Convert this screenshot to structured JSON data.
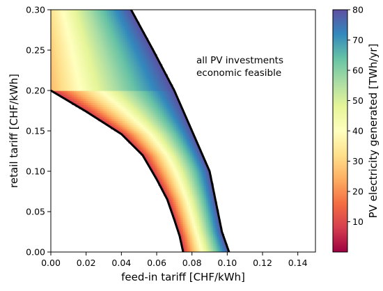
{
  "chart_data": {
    "type": "heatmap",
    "xlabel": "feed-in tariff  [CHF/kWh]",
    "ylabel": "retail tariff [CHF/kWh]",
    "xlim": [
      0.0,
      0.15
    ],
    "ylim": [
      0.0,
      0.3
    ],
    "x_ticks": [
      "0.00",
      "0.02",
      "0.04",
      "0.06",
      "0.08",
      "0.10",
      "0.12",
      "0.14"
    ],
    "x_tick_values": [
      0.0,
      0.02,
      0.04,
      0.06,
      0.08,
      0.1,
      0.12,
      0.14
    ],
    "y_ticks": [
      "0.00",
      "0.05",
      "0.10",
      "0.15",
      "0.20",
      "0.25",
      "0.30"
    ],
    "y_tick_values": [
      0.0,
      0.05,
      0.1,
      0.15,
      0.2,
      0.25,
      0.3
    ],
    "annotation": [
      "all PV investments",
      "economic feasible"
    ],
    "colorbar": {
      "label": "PV electricity generated [TWh/yr]",
      "range": [
        0,
        80
      ],
      "ticks": [
        "10",
        "20",
        "30",
        "40",
        "50",
        "60",
        "70",
        "80"
      ],
      "tick_values": [
        10,
        20,
        30,
        40,
        50,
        60,
        70,
        80
      ],
      "colormap": "Spectral",
      "colors": [
        "#9e0142",
        "#d53e4f",
        "#f46d43",
        "#fdae61",
        "#fee08b",
        "#ffffbf",
        "#e6f598",
        "#abdda4",
        "#66c2a5",
        "#3288bd",
        "#5e4fa2"
      ]
    },
    "lower_boundary": {
      "x": [
        0.0,
        0.02,
        0.04,
        0.052,
        0.06,
        0.066,
        0.07,
        0.073,
        0.075
      ],
      "y": [
        0.2,
        0.174,
        0.146,
        0.12,
        0.09,
        0.065,
        0.04,
        0.02,
        0.0
      ]
    },
    "upper_boundary": {
      "x": [
        0.0455,
        0.058,
        0.07,
        0.08,
        0.09,
        0.097,
        0.101
      ],
      "y": [
        0.3,
        0.25,
        0.2,
        0.15,
        0.1,
        0.025,
        0.0
      ]
    }
  }
}
